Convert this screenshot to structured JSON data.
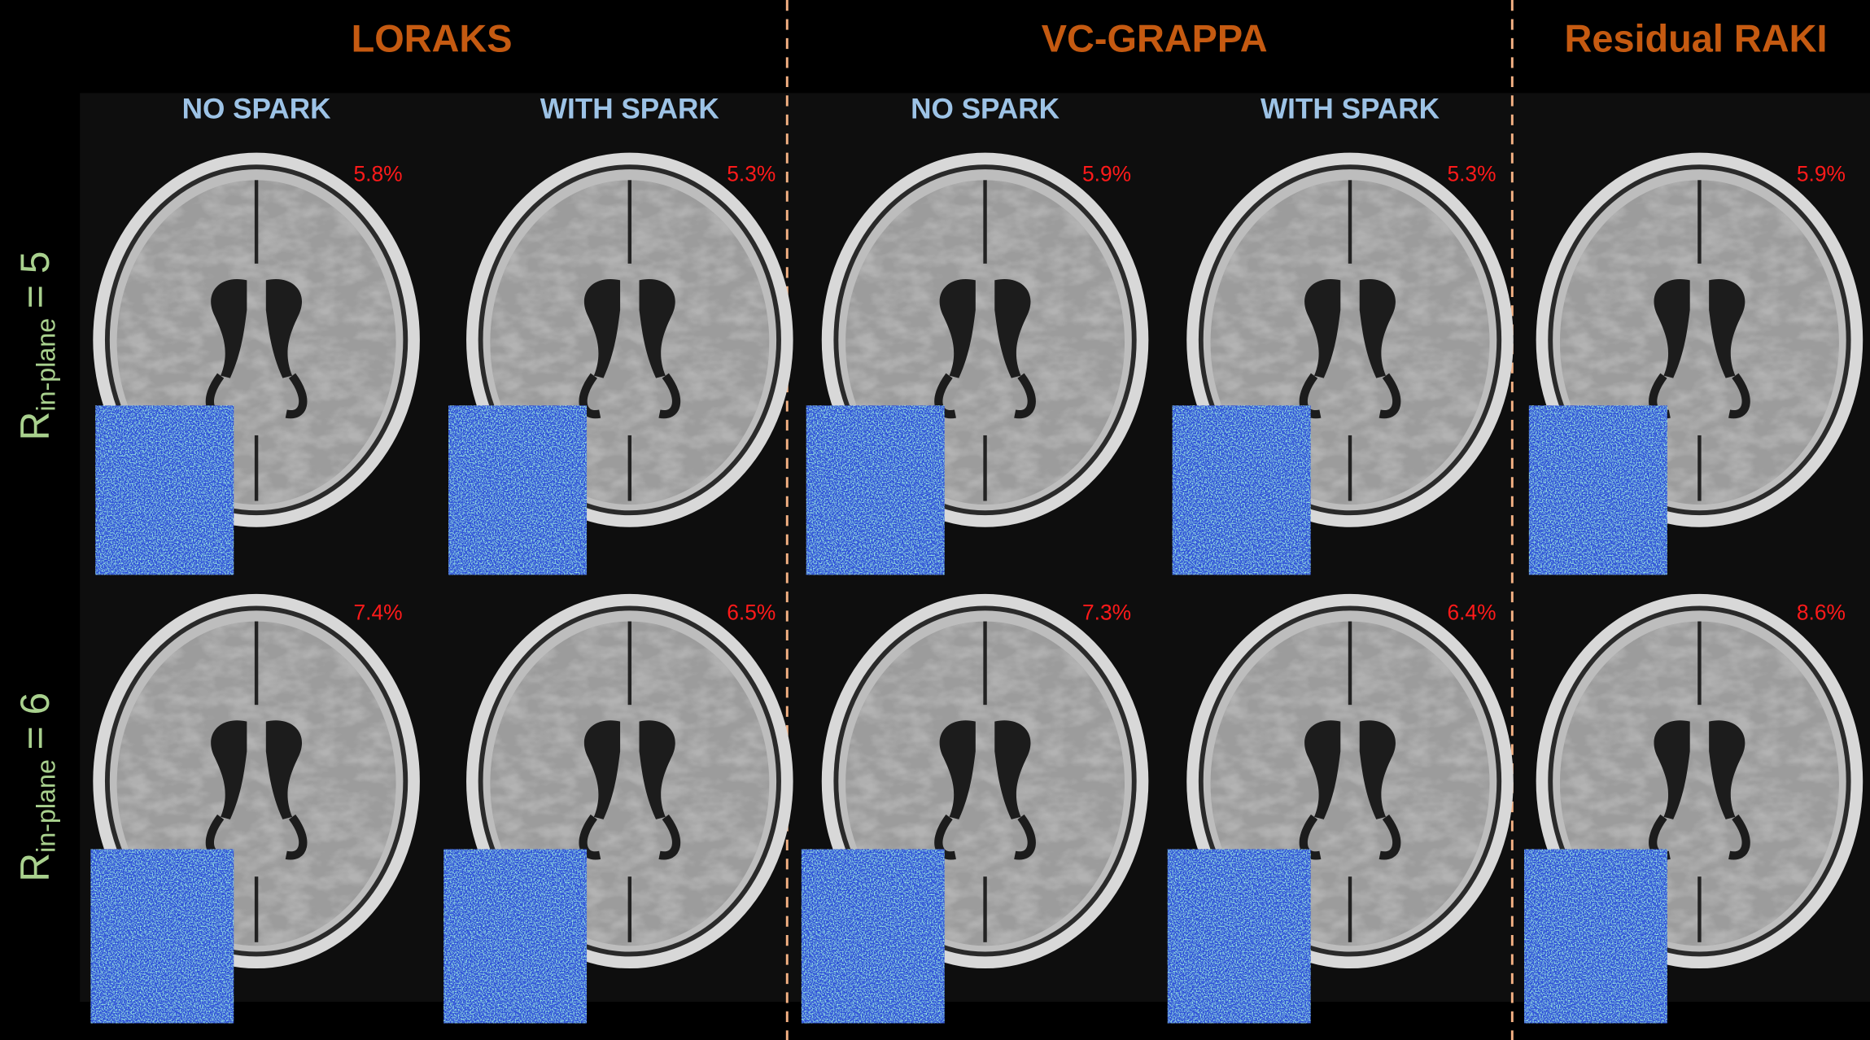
{
  "methods": [
    {
      "title": "LORAKS"
    },
    {
      "title": "VC-GRAPPA"
    },
    {
      "title": "Residual RAKI"
    }
  ],
  "column_labels": [
    "NO SPARK",
    "WITH SPARK",
    "NO SPARK",
    "WITH SPARK"
  ],
  "rows": [
    {
      "label": {
        "main": "R",
        "sub": "in-plane",
        "rest": "= 5"
      },
      "errors": [
        "5.8%",
        "5.3%",
        "5.9%",
        "5.3%",
        "5.9%"
      ]
    },
    {
      "label": {
        "main": "R",
        "sub": "in-plane",
        "rest": "= 6"
      },
      "errors": [
        "7.4%",
        "6.5%",
        "7.3%",
        "6.4%",
        "8.6%"
      ]
    }
  ]
}
